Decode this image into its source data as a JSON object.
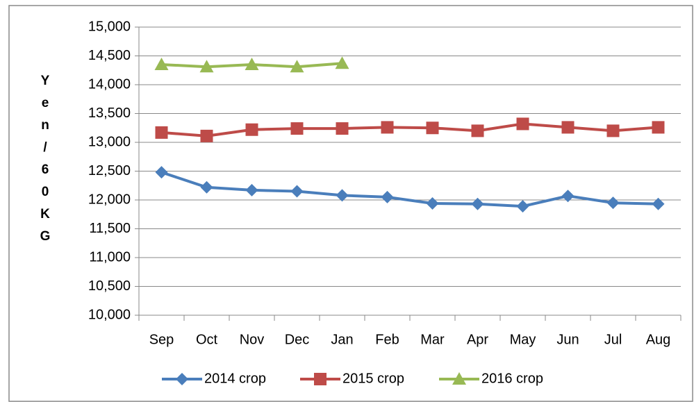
{
  "chart_data": {
    "type": "line",
    "y_label": "Yen/60KG",
    "categories": [
      "Sep",
      "Oct",
      "Nov",
      "Dec",
      "Jan",
      "Feb",
      "Mar",
      "Apr",
      "May",
      "Jun",
      "Jul",
      "Aug"
    ],
    "series": [
      {
        "name": "2014 crop",
        "color": "#4a7ebb",
        "marker": "diamond",
        "values": [
          12480,
          12220,
          12170,
          12150,
          12080,
          12050,
          11940,
          11930,
          11890,
          12070,
          11950,
          11930
        ]
      },
      {
        "name": "2015 crop",
        "color": "#be4b48",
        "marker": "square",
        "values": [
          13170,
          13110,
          13220,
          13240,
          13240,
          13260,
          13250,
          13200,
          13320,
          13260,
          13200,
          13260
        ]
      },
      {
        "name": "2016 crop",
        "color": "#98b954",
        "marker": "triangle",
        "values": [
          14350,
          14310,
          14350,
          14310,
          14370,
          null,
          null,
          null,
          null,
          null,
          null,
          null
        ]
      }
    ],
    "ylim": [
      10000,
      15000
    ],
    "yticks": [
      {
        "value": 10000,
        "label": "10,000"
      },
      {
        "value": 10500,
        "label": "10,500"
      },
      {
        "value": 11000,
        "label": "11,000"
      },
      {
        "value": 11500,
        "label": "11,500"
      },
      {
        "value": 12000,
        "label": "12,000"
      },
      {
        "value": 12500,
        "label": "12,500"
      },
      {
        "value": 13000,
        "label": "13,000"
      },
      {
        "value": 13500,
        "label": "13,500"
      },
      {
        "value": 14000,
        "label": "14,000"
      },
      {
        "value": 14500,
        "label": "14,500"
      },
      {
        "value": 15000,
        "label": "15,000"
      }
    ],
    "grid": true,
    "legend": "bottom"
  }
}
